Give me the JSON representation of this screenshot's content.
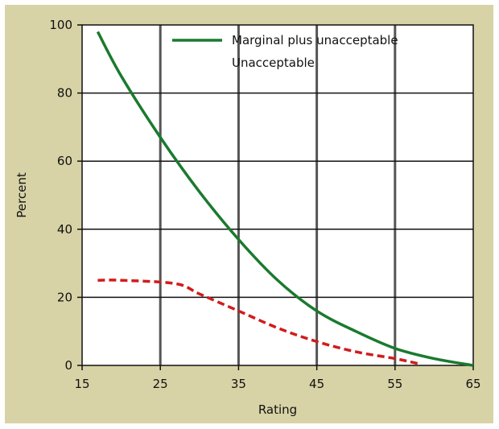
{
  "chart_data": {
    "type": "line",
    "title": "",
    "xlabel": "Rating",
    "ylabel": "Percent",
    "xlim": [
      15,
      65
    ],
    "ylim": [
      0,
      100
    ],
    "x_ticks": [
      "15",
      "25",
      "35",
      "45",
      "55",
      "65"
    ],
    "y_ticks": [
      "0",
      "20",
      "40",
      "60",
      "80",
      "100"
    ],
    "grid": true,
    "legend_placement": "top-right",
    "series": [
      {
        "name": "Marginal plus unacceptable",
        "color": "#1a7a2e",
        "style": "solid",
        "x": [
          17,
          20,
          25,
          30,
          35,
          40,
          45,
          50,
          55,
          60,
          65
        ],
        "y": [
          98,
          85,
          67,
          51,
          37,
          25,
          16,
          10,
          5,
          2,
          0
        ]
      },
      {
        "name": "Unacceptable",
        "color": "#d01c1c",
        "style": "dashed",
        "x": [
          17,
          20,
          27,
          30,
          35,
          40,
          45,
          50,
          55,
          58
        ],
        "y": [
          25,
          25,
          24,
          21,
          16,
          11,
          7,
          4,
          2,
          0.5
        ]
      }
    ],
    "colors": {
      "panel_bg": "#d8d3a6",
      "plot_bg": "#ffffff",
      "grid": "#555555",
      "axis": "#111111"
    }
  }
}
